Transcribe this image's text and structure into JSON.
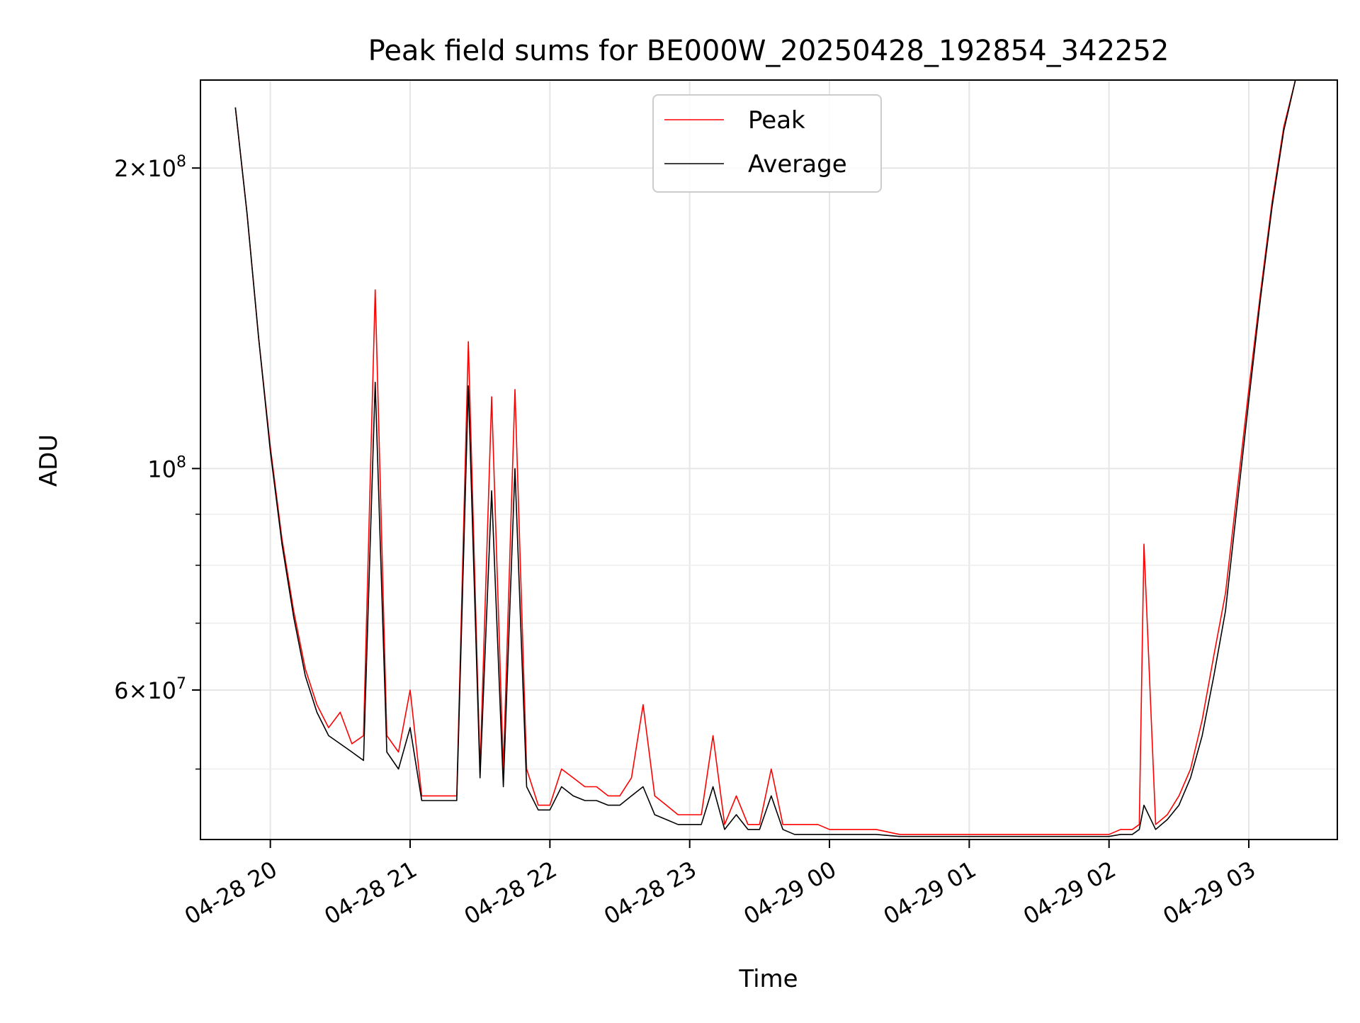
{
  "chart_data": {
    "type": "line",
    "title": "Peak field sums for BE000W_20250428_192854_342252",
    "xlabel": "Time",
    "ylabel": "ADU",
    "y_scale": "log",
    "grid": true,
    "legend_position": "top-center",
    "xlim": [
      "2025-04-28 19:30",
      "2025-04-29 03:38"
    ],
    "ylim": [
      42500000,
      245000000
    ],
    "x_ticks": [
      {
        "value": "2025-04-28 20:00",
        "label": "04-28 20"
      },
      {
        "value": "2025-04-28 21:00",
        "label": "04-28 21"
      },
      {
        "value": "2025-04-28 22:00",
        "label": "04-28 22"
      },
      {
        "value": "2025-04-28 23:00",
        "label": "04-28 23"
      },
      {
        "value": "2025-04-29 00:00",
        "label": "04-29 00"
      },
      {
        "value": "2025-04-29 01:00",
        "label": "04-29 01"
      },
      {
        "value": "2025-04-29 02:00",
        "label": "04-29 02"
      },
      {
        "value": "2025-04-29 03:00",
        "label": "04-29 03"
      }
    ],
    "y_ticks": [
      {
        "value": 200000000,
        "base": "2×10",
        "exp": "8"
      },
      {
        "value": 100000000,
        "base": "10",
        "exp": "8"
      },
      {
        "value": 60000000,
        "base": "6×10",
        "exp": "7"
      }
    ],
    "y_minor_ticks": [
      50000000,
      70000000,
      80000000,
      90000000
    ],
    "series": [
      {
        "name": "Peak",
        "color": "#ff0000",
        "x": [
          "2025-04-28 19:45",
          "2025-04-28 19:50",
          "2025-04-28 19:55",
          "2025-04-28 20:00",
          "2025-04-28 20:05",
          "2025-04-28 20:10",
          "2025-04-28 20:15",
          "2025-04-28 20:20",
          "2025-04-28 20:25",
          "2025-04-28 20:30",
          "2025-04-28 20:35",
          "2025-04-28 20:40",
          "2025-04-28 20:45",
          "2025-04-28 20:50",
          "2025-04-28 20:55",
          "2025-04-28 21:00",
          "2025-04-28 21:05",
          "2025-04-28 21:10",
          "2025-04-28 21:15",
          "2025-04-28 21:20",
          "2025-04-28 21:25",
          "2025-04-28 21:30",
          "2025-04-28 21:35",
          "2025-04-28 21:40",
          "2025-04-28 21:45",
          "2025-04-28 21:50",
          "2025-04-28 21:55",
          "2025-04-28 22:00",
          "2025-04-28 22:05",
          "2025-04-28 22:10",
          "2025-04-28 22:15",
          "2025-04-28 22:20",
          "2025-04-28 22:25",
          "2025-04-28 22:30",
          "2025-04-28 22:35",
          "2025-04-28 22:40",
          "2025-04-28 22:45",
          "2025-04-28 22:50",
          "2025-04-28 22:55",
          "2025-04-28 23:00",
          "2025-04-28 23:05",
          "2025-04-28 23:10",
          "2025-04-28 23:15",
          "2025-04-28 23:20",
          "2025-04-28 23:25",
          "2025-04-28 23:30",
          "2025-04-28 23:35",
          "2025-04-28 23:40",
          "2025-04-28 23:45",
          "2025-04-28 23:50",
          "2025-04-28 23:55",
          "2025-04-29 00:00",
          "2025-04-29 00:10",
          "2025-04-29 00:20",
          "2025-04-29 00:30",
          "2025-04-29 00:40",
          "2025-04-29 00:50",
          "2025-04-29 01:00",
          "2025-04-29 01:10",
          "2025-04-29 01:20",
          "2025-04-29 01:30",
          "2025-04-29 01:40",
          "2025-04-29 01:50",
          "2025-04-29 02:00",
          "2025-04-29 02:05",
          "2025-04-29 02:10",
          "2025-04-29 02:13",
          "2025-04-29 02:15",
          "2025-04-29 02:20",
          "2025-04-29 02:25",
          "2025-04-29 02:30",
          "2025-04-29 02:35",
          "2025-04-29 02:40",
          "2025-04-29 02:45",
          "2025-04-29 02:50",
          "2025-04-29 02:55",
          "2025-04-29 03:00",
          "2025-04-29 03:05",
          "2025-04-29 03:10",
          "2025-04-29 03:15",
          "2025-04-29 03:20",
          "2025-04-29 03:25"
        ],
        "y": [
          230000000,
          180000000,
          135000000,
          105000000,
          85000000,
          72000000,
          63000000,
          58000000,
          55000000,
          57000000,
          53000000,
          54000000,
          151000000,
          54000000,
          52000000,
          60000000,
          47000000,
          47000000,
          47000000,
          47000000,
          134000000,
          50000000,
          118000000,
          50000000,
          120000000,
          50000000,
          46000000,
          46000000,
          50000000,
          49000000,
          48000000,
          48000000,
          47000000,
          47000000,
          49000000,
          58000000,
          47000000,
          46000000,
          45000000,
          45000000,
          45000000,
          54000000,
          44000000,
          47000000,
          44000000,
          44000000,
          50000000,
          44000000,
          44000000,
          44000000,
          44000000,
          43500000,
          43500000,
          43500000,
          43000000,
          43000000,
          43000000,
          43000000,
          43000000,
          43000000,
          43000000,
          43000000,
          43000000,
          43000000,
          43500000,
          43500000,
          44000000,
          84000000,
          44000000,
          45000000,
          47000000,
          50000000,
          56000000,
          65000000,
          75000000,
          95000000,
          120000000,
          150000000,
          185000000,
          220000000,
          245000000,
          245000000
        ]
      },
      {
        "name": "Average",
        "color": "#000000",
        "x": [
          "2025-04-28 19:45",
          "2025-04-28 19:50",
          "2025-04-28 19:55",
          "2025-04-28 20:00",
          "2025-04-28 20:05",
          "2025-04-28 20:10",
          "2025-04-28 20:15",
          "2025-04-28 20:20",
          "2025-04-28 20:25",
          "2025-04-28 20:30",
          "2025-04-28 20:35",
          "2025-04-28 20:40",
          "2025-04-28 20:45",
          "2025-04-28 20:50",
          "2025-04-28 20:55",
          "2025-04-28 21:00",
          "2025-04-28 21:05",
          "2025-04-28 21:10",
          "2025-04-28 21:15",
          "2025-04-28 21:20",
          "2025-04-28 21:25",
          "2025-04-28 21:30",
          "2025-04-28 21:35",
          "2025-04-28 21:40",
          "2025-04-28 21:45",
          "2025-04-28 21:50",
          "2025-04-28 21:55",
          "2025-04-28 22:00",
          "2025-04-28 22:05",
          "2025-04-28 22:10",
          "2025-04-28 22:15",
          "2025-04-28 22:20",
          "2025-04-28 22:25",
          "2025-04-28 22:30",
          "2025-04-28 22:35",
          "2025-04-28 22:40",
          "2025-04-28 22:45",
          "2025-04-28 22:50",
          "2025-04-28 22:55",
          "2025-04-28 23:00",
          "2025-04-28 23:05",
          "2025-04-28 23:10",
          "2025-04-28 23:15",
          "2025-04-28 23:20",
          "2025-04-28 23:25",
          "2025-04-28 23:30",
          "2025-04-28 23:35",
          "2025-04-28 23:40",
          "2025-04-28 23:45",
          "2025-04-28 23:50",
          "2025-04-28 23:55",
          "2025-04-29 00:00",
          "2025-04-29 00:10",
          "2025-04-29 00:20",
          "2025-04-29 00:30",
          "2025-04-29 00:40",
          "2025-04-29 00:50",
          "2025-04-29 01:00",
          "2025-04-29 01:10",
          "2025-04-29 01:20",
          "2025-04-29 01:30",
          "2025-04-29 01:40",
          "2025-04-29 01:50",
          "2025-04-29 02:00",
          "2025-04-29 02:05",
          "2025-04-29 02:10",
          "2025-04-29 02:13",
          "2025-04-29 02:15",
          "2025-04-29 02:20",
          "2025-04-29 02:25",
          "2025-04-29 02:30",
          "2025-04-29 02:35",
          "2025-04-29 02:40",
          "2025-04-29 02:45",
          "2025-04-29 02:50",
          "2025-04-29 02:55",
          "2025-04-29 03:00",
          "2025-04-29 03:05",
          "2025-04-29 03:10",
          "2025-04-29 03:15",
          "2025-04-29 03:20",
          "2025-04-29 03:25"
        ],
        "y": [
          230000000,
          180000000,
          135000000,
          104000000,
          84000000,
          71000000,
          62000000,
          57000000,
          54000000,
          53000000,
          52000000,
          51000000,
          122000000,
          52000000,
          50000000,
          55000000,
          46500000,
          46500000,
          46500000,
          46500000,
          121000000,
          49000000,
          95000000,
          48000000,
          100000000,
          48000000,
          45500000,
          45500000,
          48000000,
          47000000,
          46500000,
          46500000,
          46000000,
          46000000,
          47000000,
          48000000,
          45000000,
          44500000,
          44000000,
          44000000,
          44000000,
          48000000,
          43500000,
          45000000,
          43500000,
          43500000,
          47000000,
          43500000,
          43000000,
          43000000,
          43000000,
          43000000,
          43000000,
          43000000,
          42800000,
          42800000,
          42800000,
          42800000,
          42800000,
          42800000,
          42800000,
          42800000,
          42800000,
          42800000,
          43000000,
          43000000,
          43500000,
          46000000,
          43500000,
          44500000,
          46000000,
          49000000,
          54000000,
          62000000,
          72000000,
          92000000,
          117000000,
          148000000,
          183000000,
          218000000,
          245000000,
          245000000
        ]
      }
    ]
  }
}
